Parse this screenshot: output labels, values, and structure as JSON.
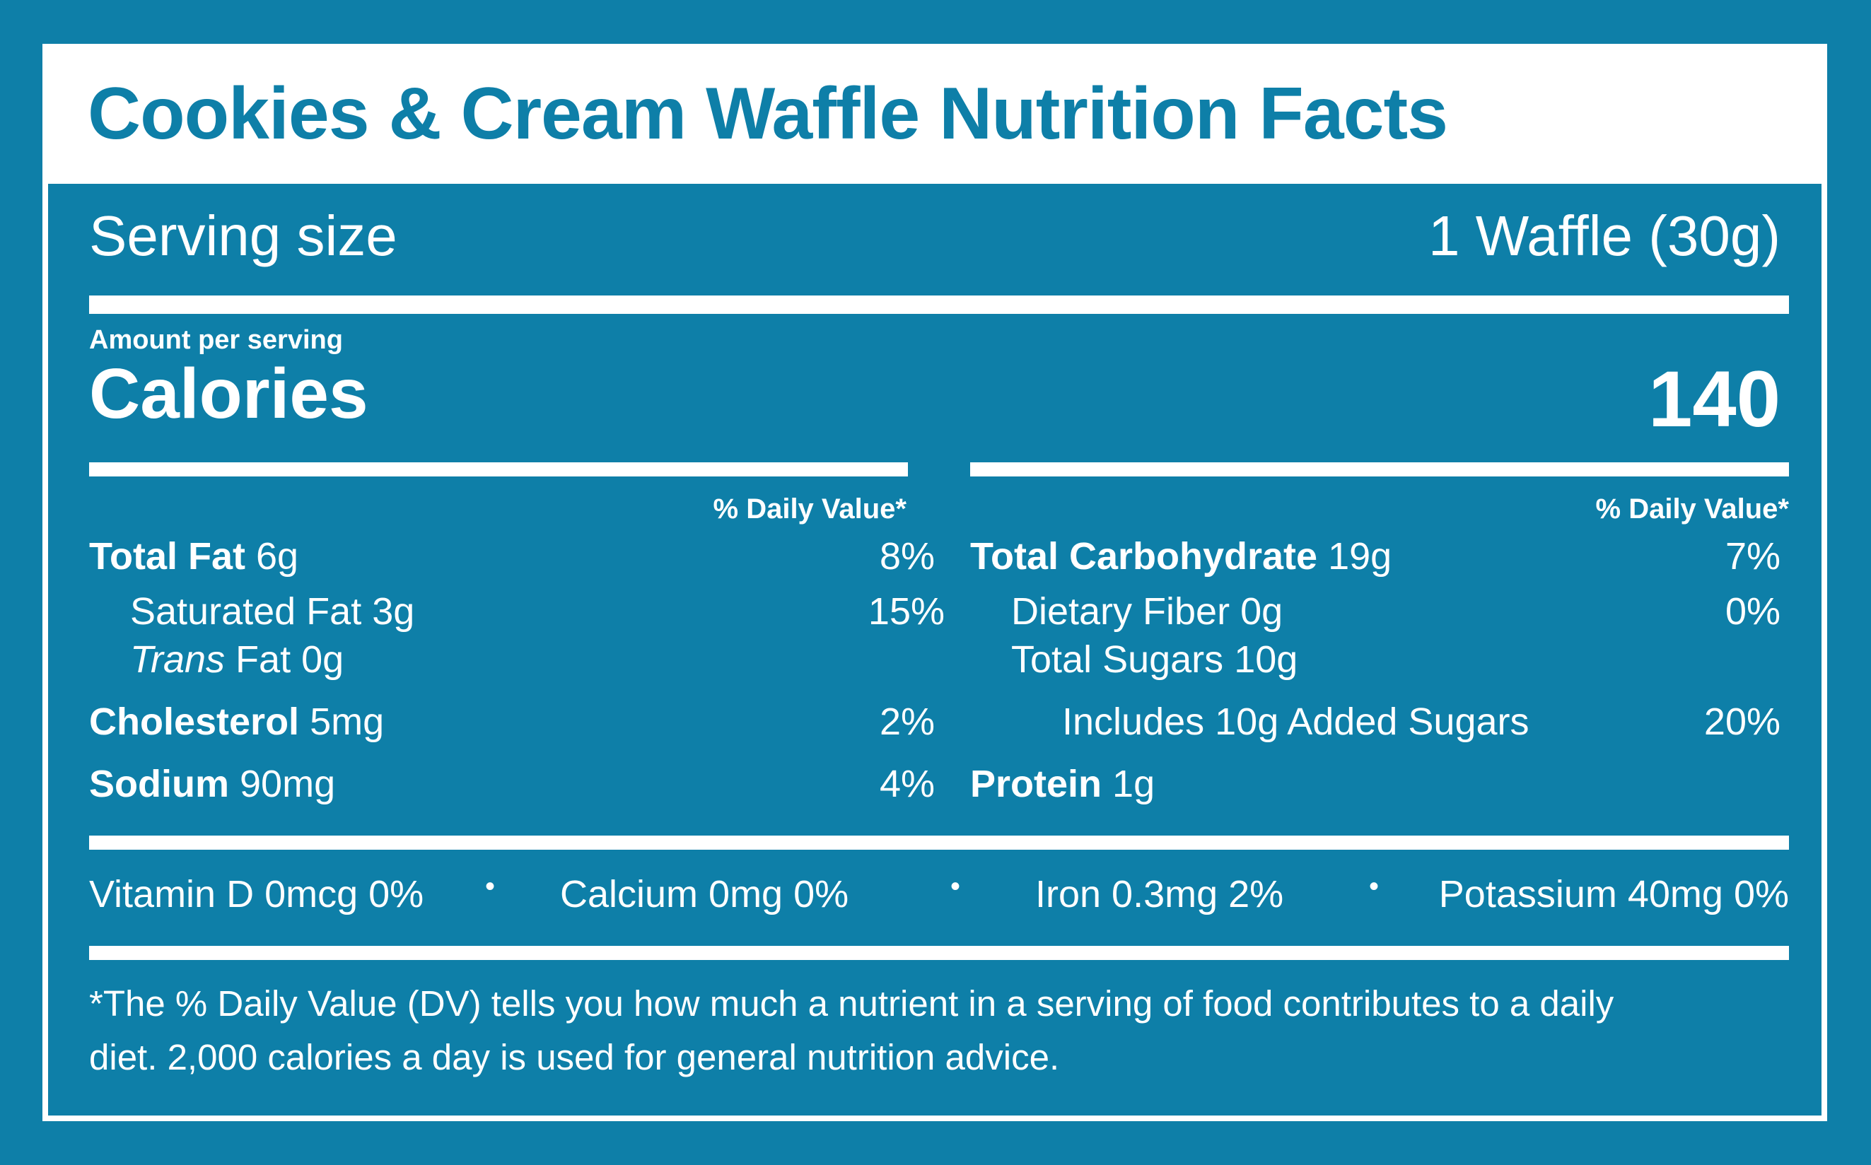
{
  "title": "Cookies & Cream Waffle Nutrition Facts",
  "serving": {
    "label": "Serving size",
    "value": "1 Waffle (30g)"
  },
  "amount_label": "Amount per serving",
  "calories": {
    "label": "Calories",
    "value": "140"
  },
  "dv_header": "% Daily Value*",
  "left": {
    "total_fat": {
      "label": "Total Fat",
      "value": "6g",
      "dv": "8%"
    },
    "saturated_fat": {
      "label": "Saturated Fat",
      "value": "3g",
      "dv": "15%"
    },
    "trans_fat": {
      "label_italic": "Trans",
      "label": "Fat",
      "value": "0g"
    },
    "cholesterol": {
      "label": "Cholesterol",
      "value": "5mg",
      "dv": "2%"
    },
    "sodium": {
      "label": "Sodium",
      "value": "90mg",
      "dv": "4%"
    }
  },
  "right": {
    "total_carb": {
      "label": "Total Carbohydrate",
      "value": "19g",
      "dv": "7%"
    },
    "fiber": {
      "label": "Dietary Fiber",
      "value": "0g",
      "dv": "0%"
    },
    "sugars": {
      "label": "Total Sugars",
      "value": "10g"
    },
    "added_sugars": {
      "label": "Includes 10g Added Sugars",
      "dv": "20%"
    },
    "protein": {
      "label": "Protein",
      "value": "1g"
    }
  },
  "micros": [
    "Vitamin D 0mcg 0%",
    "Calcium 0mg 0%",
    "Iron 0.3mg 2%",
    "Potassium 40mg 0%"
  ],
  "separator": "•",
  "footnote": {
    "line1": "*The % Daily Value (DV) tells you how much a nutrient in a serving of food contributes to a daily",
    "line2": "diet. 2,000 calories a day is used for general nutrition advice."
  },
  "colors": {
    "brand_blue": "#0e7fa8",
    "white": "#ffffff"
  }
}
